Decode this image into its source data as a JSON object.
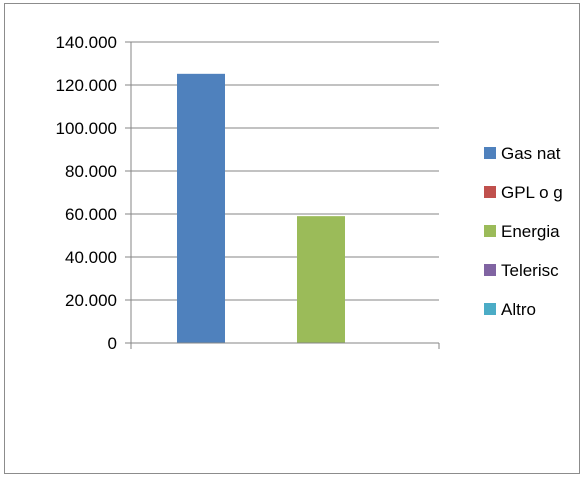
{
  "chart_data": {
    "type": "bar",
    "categories": [
      ""
    ],
    "series": [
      {
        "name": "Gas nat",
        "values": [
          125200
        ],
        "color": "#4f81bd"
      },
      {
        "name": "GPL o g",
        "values": [
          0
        ],
        "color": "#c0504d"
      },
      {
        "name": "Energia",
        "values": [
          59000
        ],
        "color": "#9bbb59"
      },
      {
        "name": "Telerisc",
        "values": [
          0
        ],
        "color": "#8064a2"
      },
      {
        "name": "Altro",
        "values": [
          0
        ],
        "color": "#4bacc6"
      }
    ],
    "ylim": [
      0,
      140000
    ],
    "y_ticks": [
      0,
      20000,
      40000,
      60000,
      80000,
      100000,
      120000,
      140000
    ],
    "y_tick_labels": [
      "0",
      "20.000",
      "40.000",
      "60.000",
      "80.000",
      "100.000",
      "120.000",
      "140.000"
    ],
    "title": "",
    "xlabel": "",
    "ylabel": "",
    "grid": true,
    "legend_position": "right",
    "colors": {
      "gridline": "#868686",
      "axis": "#868686",
      "border": "#8c8c8c"
    }
  }
}
